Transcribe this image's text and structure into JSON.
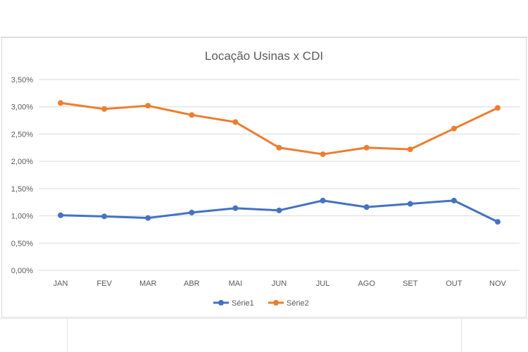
{
  "chart_data": {
    "type": "line",
    "title": "Locação Usinas x CDI",
    "categories": [
      "JAN",
      "FEV",
      "MAR",
      "ABR",
      "MAI",
      "JUN",
      "JUL",
      "AGO",
      "SET",
      "OUT",
      "NOV"
    ],
    "ylim": [
      0,
      0.035
    ],
    "yticks": [
      0,
      0.005,
      0.01,
      0.015,
      0.02,
      0.025,
      0.03,
      0.035
    ],
    "ytick_labels": [
      "0,00%",
      "0,50%",
      "1,00%",
      "1,50%",
      "2,00%",
      "2,50%",
      "3,00%",
      "3,50%"
    ],
    "grid": true,
    "legend_position": "bottom",
    "series": [
      {
        "name": "Série1",
        "color": "#4472c4",
        "values": [
          0.0101,
          0.0099,
          0.0096,
          0.0106,
          0.0114,
          0.011,
          0.0128,
          0.0116,
          0.0122,
          0.0128,
          0.0089
        ]
      },
      {
        "name": "Série2",
        "color": "#ed7d31",
        "values": [
          0.0307,
          0.0296,
          0.0302,
          0.0285,
          0.0272,
          0.0225,
          0.0213,
          0.0225,
          0.0222,
          0.026,
          0.0298
        ]
      }
    ]
  }
}
